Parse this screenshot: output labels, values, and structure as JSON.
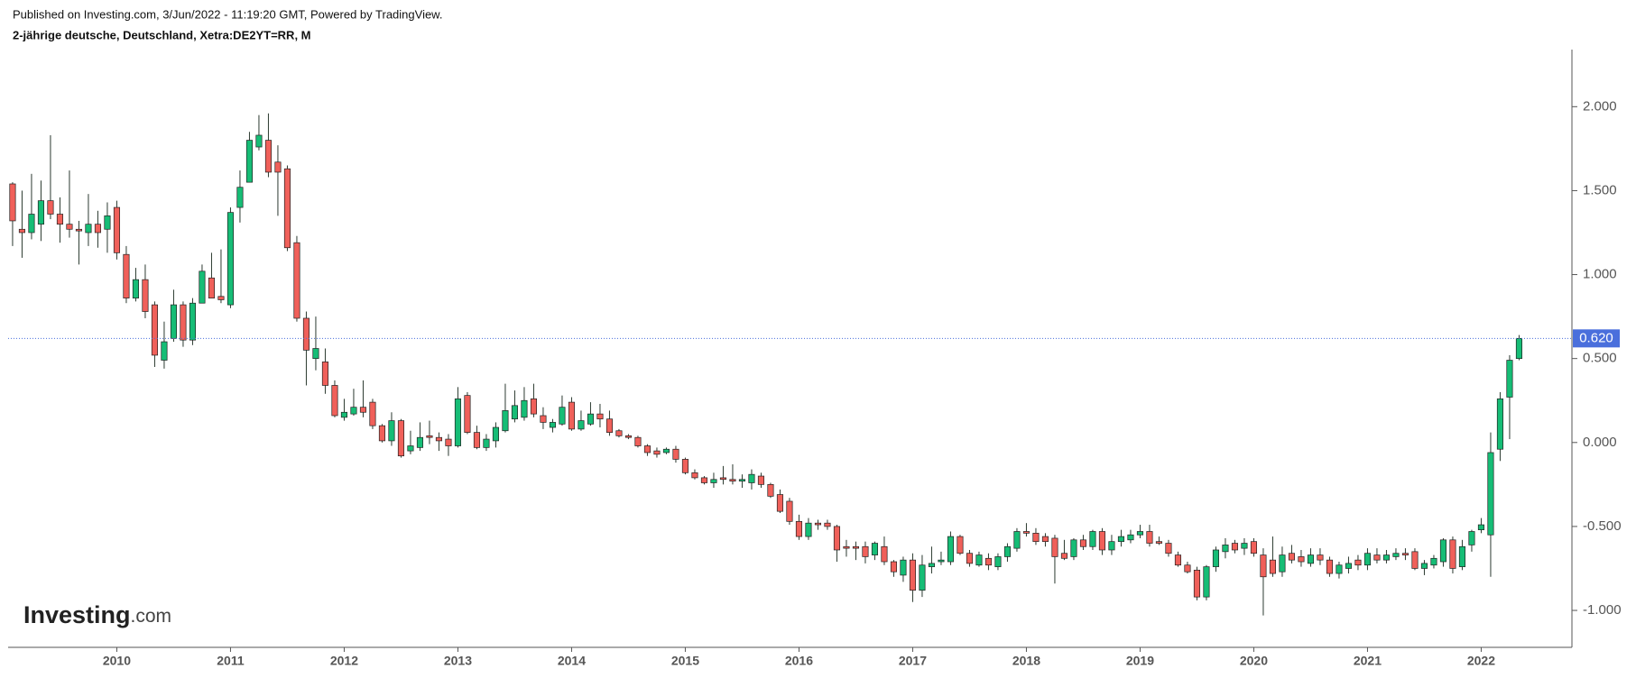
{
  "header": {
    "published": "Published on Investing.com, 3/Jun/2022 - 11:19:20 GMT, Powered by TradingView.",
    "instrument": "2-jährige deutsche, Deutschland, Xetra:DE2YT=RR, M"
  },
  "logo": {
    "name": "Investing",
    "suffix": ".com"
  },
  "chart_data": {
    "type": "candlestick",
    "up_color": "#16bd76",
    "down_color": "#f0605a",
    "wick_color": "#2b3a30",
    "price_line_color": "#4a6fdc",
    "ylim": [
      -1.22,
      2.34
    ],
    "yticks": [
      {
        "value": -1,
        "label": "-1.000"
      },
      {
        "value": -0.5,
        "label": "-0.500"
      },
      {
        "value": 0,
        "label": "0.000"
      },
      {
        "value": 0.5,
        "label": "0.500"
      },
      {
        "value": 1,
        "label": "1.000"
      },
      {
        "value": 1.5,
        "label": "1.500"
      },
      {
        "value": 2,
        "label": "2.000"
      }
    ],
    "last_price": {
      "value": 0.62,
      "label": "0.620"
    },
    "categories": [
      null,
      null,
      null,
      null,
      null,
      null,
      null,
      null,
      null,
      null,
      null,
      "2010",
      null,
      null,
      null,
      null,
      null,
      null,
      null,
      null,
      null,
      null,
      null,
      "2011",
      null,
      null,
      null,
      null,
      null,
      null,
      null,
      null,
      null,
      null,
      null,
      "2012",
      null,
      null,
      null,
      null,
      null,
      null,
      null,
      null,
      null,
      null,
      null,
      "2013",
      null,
      null,
      null,
      null,
      null,
      null,
      null,
      null,
      null,
      null,
      null,
      "2014",
      null,
      null,
      null,
      null,
      null,
      null,
      null,
      null,
      null,
      null,
      null,
      "2015",
      null,
      null,
      null,
      null,
      null,
      null,
      null,
      null,
      null,
      null,
      null,
      "2016",
      null,
      null,
      null,
      null,
      null,
      null,
      null,
      null,
      null,
      null,
      null,
      "2017",
      null,
      null,
      null,
      null,
      null,
      null,
      null,
      null,
      null,
      null,
      null,
      "2018",
      null,
      null,
      null,
      null,
      null,
      null,
      null,
      null,
      null,
      null,
      null,
      "2019",
      null,
      null,
      null,
      null,
      null,
      null,
      null,
      null,
      null,
      null,
      null,
      "2020",
      null,
      null,
      null,
      null,
      null,
      null,
      null,
      null,
      null,
      null,
      null,
      "2021",
      null,
      null,
      null,
      null,
      null,
      null,
      null,
      null,
      null,
      null,
      null,
      "2022",
      null,
      null,
      null,
      null
    ],
    "candles": [
      {
        "open": 1.54,
        "high": 1.55,
        "low": 1.17,
        "close": 1.32
      },
      {
        "open": 1.27,
        "high": 1.5,
        "low": 1.1,
        "close": 1.25
      },
      {
        "open": 1.25,
        "high": 1.6,
        "low": 1.21,
        "close": 1.36
      },
      {
        "open": 1.3,
        "high": 1.56,
        "low": 1.2,
        "close": 1.44
      },
      {
        "open": 1.44,
        "high": 1.83,
        "low": 1.33,
        "close": 1.36
      },
      {
        "open": 1.36,
        "high": 1.46,
        "low": 1.19,
        "close": 1.3
      },
      {
        "open": 1.3,
        "high": 1.62,
        "low": 1.22,
        "close": 1.27
      },
      {
        "open": 1.27,
        "high": 1.32,
        "low": 1.06,
        "close": 1.26
      },
      {
        "open": 1.25,
        "high": 1.48,
        "low": 1.17,
        "close": 1.3
      },
      {
        "open": 1.3,
        "high": 1.38,
        "low": 1.16,
        "close": 1.25
      },
      {
        "open": 1.27,
        "high": 1.43,
        "low": 1.13,
        "close": 1.35
      },
      {
        "open": 1.4,
        "high": 1.44,
        "low": 1.09,
        "close": 1.13
      },
      {
        "open": 1.12,
        "high": 1.17,
        "low": 0.83,
        "close": 0.86
      },
      {
        "open": 0.86,
        "high": 1.04,
        "low": 0.84,
        "close": 0.97
      },
      {
        "open": 0.97,
        "high": 1.06,
        "low": 0.74,
        "close": 0.78
      },
      {
        "open": 0.82,
        "high": 0.84,
        "low": 0.45,
        "close": 0.52
      },
      {
        "open": 0.49,
        "high": 0.72,
        "low": 0.44,
        "close": 0.6
      },
      {
        "open": 0.62,
        "high": 0.91,
        "low": 0.6,
        "close": 0.82
      },
      {
        "open": 0.82,
        "high": 0.84,
        "low": 0.57,
        "close": 0.61
      },
      {
        "open": 0.61,
        "high": 0.86,
        "low": 0.58,
        "close": 0.83
      },
      {
        "open": 0.83,
        "high": 1.06,
        "low": 0.83,
        "close": 1.02
      },
      {
        "open": 0.98,
        "high": 1.13,
        "low": 0.86,
        "close": 0.86
      },
      {
        "open": 0.87,
        "high": 1.15,
        "low": 0.83,
        "close": 0.85
      },
      {
        "open": 0.82,
        "high": 1.4,
        "low": 0.8,
        "close": 1.37
      },
      {
        "open": 1.4,
        "high": 1.62,
        "low": 1.31,
        "close": 1.52
      },
      {
        "open": 1.55,
        "high": 1.85,
        "low": 1.55,
        "close": 1.8
      },
      {
        "open": 1.76,
        "high": 1.95,
        "low": 1.74,
        "close": 1.83
      },
      {
        "open": 1.8,
        "high": 1.96,
        "low": 1.58,
        "close": 1.61
      },
      {
        "open": 1.67,
        "high": 1.77,
        "low": 1.35,
        "close": 1.61
      },
      {
        "open": 1.63,
        "high": 1.65,
        "low": 1.14,
        "close": 1.16
      },
      {
        "open": 1.19,
        "high": 1.23,
        "low": 0.72,
        "close": 0.74
      },
      {
        "open": 0.74,
        "high": 0.78,
        "low": 0.34,
        "close": 0.55
      },
      {
        "open": 0.5,
        "high": 0.75,
        "low": 0.43,
        "close": 0.56
      },
      {
        "open": 0.48,
        "high": 0.56,
        "low": 0.29,
        "close": 0.34
      },
      {
        "open": 0.34,
        "high": 0.37,
        "low": 0.15,
        "close": 0.16
      },
      {
        "open": 0.15,
        "high": 0.26,
        "low": 0.13,
        "close": 0.18
      },
      {
        "open": 0.17,
        "high": 0.32,
        "low": 0.16,
        "close": 0.21
      },
      {
        "open": 0.21,
        "high": 0.37,
        "low": 0.15,
        "close": 0.18
      },
      {
        "open": 0.24,
        "high": 0.26,
        "low": 0.08,
        "close": 0.1
      },
      {
        "open": 0.1,
        "high": 0.11,
        "low": 0,
        "close": 0.01
      },
      {
        "open": 0.01,
        "high": 0.18,
        "low": -0.02,
        "close": 0.13
      },
      {
        "open": 0.13,
        "high": 0.14,
        "low": -0.09,
        "close": -0.08
      },
      {
        "open": -0.05,
        "high": 0.07,
        "low": -0.07,
        "close": -0.02
      },
      {
        "open": -0.03,
        "high": 0.12,
        "low": -0.05,
        "close": 0.03
      },
      {
        "open": 0.04,
        "high": 0.13,
        "low": -0.01,
        "close": 0.03
      },
      {
        "open": 0.03,
        "high": 0.06,
        "low": -0.05,
        "close": 0.01
      },
      {
        "open": 0.02,
        "high": 0.05,
        "low": -0.08,
        "close": -0.02
      },
      {
        "open": -0.02,
        "high": 0.33,
        "low": -0.03,
        "close": 0.26
      },
      {
        "open": 0.28,
        "high": 0.3,
        "low": 0.05,
        "close": 0.06
      },
      {
        "open": 0.06,
        "high": 0.1,
        "low": -0.04,
        "close": -0.03
      },
      {
        "open": -0.03,
        "high": 0.05,
        "low": -0.05,
        "close": 0.02
      },
      {
        "open": 0.01,
        "high": 0.12,
        "low": -0.03,
        "close": 0.09
      },
      {
        "open": 0.07,
        "high": 0.35,
        "low": 0.06,
        "close": 0.19
      },
      {
        "open": 0.14,
        "high": 0.31,
        "low": 0.12,
        "close": 0.22
      },
      {
        "open": 0.15,
        "high": 0.33,
        "low": 0.13,
        "close": 0.25
      },
      {
        "open": 0.26,
        "high": 0.35,
        "low": 0.15,
        "close": 0.17
      },
      {
        "open": 0.16,
        "high": 0.21,
        "low": 0.08,
        "close": 0.12
      },
      {
        "open": 0.09,
        "high": 0.14,
        "low": 0.06,
        "close": 0.12
      },
      {
        "open": 0.11,
        "high": 0.28,
        "low": 0.1,
        "close": 0.21
      },
      {
        "open": 0.24,
        "high": 0.27,
        "low": 0.07,
        "close": 0.08
      },
      {
        "open": 0.08,
        "high": 0.19,
        "low": 0.07,
        "close": 0.13
      },
      {
        "open": 0.11,
        "high": 0.24,
        "low": 0.1,
        "close": 0.17
      },
      {
        "open": 0.17,
        "high": 0.23,
        "low": 0.09,
        "close": 0.14
      },
      {
        "open": 0.14,
        "high": 0.19,
        "low": 0.04,
        "close": 0.06
      },
      {
        "open": 0.07,
        "high": 0.08,
        "low": 0.03,
        "close": 0.04
      },
      {
        "open": 0.04,
        "high": 0.05,
        "low": 0.02,
        "close": 0.03
      },
      {
        "open": 0.03,
        "high": 0.04,
        "low": -0.03,
        "close": -0.02
      },
      {
        "open": -0.02,
        "high": -0.01,
        "low": -0.08,
        "close": -0.06
      },
      {
        "open": -0.05,
        "high": -0.03,
        "low": -0.09,
        "close": -0.07
      },
      {
        "open": -0.06,
        "high": -0.03,
        "low": -0.07,
        "close": -0.04
      },
      {
        "open": -0.04,
        "high": -0.02,
        "low": -0.12,
        "close": -0.1
      },
      {
        "open": -0.1,
        "high": -0.09,
        "low": -0.19,
        "close": -0.18
      },
      {
        "open": -0.18,
        "high": -0.16,
        "low": -0.22,
        "close": -0.21
      },
      {
        "open": -0.21,
        "high": -0.2,
        "low": -0.25,
        "close": -0.24
      },
      {
        "open": -0.24,
        "high": -0.18,
        "low": -0.27,
        "close": -0.22
      },
      {
        "open": -0.21,
        "high": -0.14,
        "low": -0.25,
        "close": -0.22
      },
      {
        "open": -0.22,
        "high": -0.13,
        "low": -0.25,
        "close": -0.23
      },
      {
        "open": -0.23,
        "high": -0.19,
        "low": -0.27,
        "close": -0.22
      },
      {
        "open": -0.24,
        "high": -0.16,
        "low": -0.28,
        "close": -0.19
      },
      {
        "open": -0.2,
        "high": -0.18,
        "low": -0.27,
        "close": -0.25
      },
      {
        "open": -0.25,
        "high": -0.24,
        "low": -0.33,
        "close": -0.32
      },
      {
        "open": -0.31,
        "high": -0.28,
        "low": -0.42,
        "close": -0.41
      },
      {
        "open": -0.35,
        "high": -0.33,
        "low": -0.49,
        "close": -0.47
      },
      {
        "open": -0.47,
        "high": -0.43,
        "low": -0.58,
        "close": -0.56
      },
      {
        "open": -0.56,
        "high": -0.45,
        "low": -0.58,
        "close": -0.48
      },
      {
        "open": -0.48,
        "high": -0.46,
        "low": -0.52,
        "close": -0.49
      },
      {
        "open": -0.48,
        "high": -0.46,
        "low": -0.52,
        "close": -0.5
      },
      {
        "open": -0.5,
        "high": -0.49,
        "low": -0.71,
        "close": -0.64
      },
      {
        "open": -0.62,
        "high": -0.58,
        "low": -0.68,
        "close": -0.63
      },
      {
        "open": -0.62,
        "high": -0.59,
        "low": -0.7,
        "close": -0.63
      },
      {
        "open": -0.62,
        "high": -0.59,
        "low": -0.72,
        "close": -0.68
      },
      {
        "open": -0.67,
        "high": -0.59,
        "low": -0.7,
        "close": -0.6
      },
      {
        "open": -0.62,
        "high": -0.56,
        "low": -0.73,
        "close": -0.71
      },
      {
        "open": -0.71,
        "high": -0.7,
        "low": -0.8,
        "close": -0.77
      },
      {
        "open": -0.79,
        "high": -0.68,
        "low": -0.83,
        "close": -0.7
      },
      {
        "open": -0.7,
        "high": -0.66,
        "low": -0.95,
        "close": -0.88
      },
      {
        "open": -0.88,
        "high": -0.67,
        "low": -0.92,
        "close": -0.73
      },
      {
        "open": -0.74,
        "high": -0.62,
        "low": -0.78,
        "close": -0.72
      },
      {
        "open": -0.71,
        "high": -0.65,
        "low": -0.73,
        "close": -0.7
      },
      {
        "open": -0.71,
        "high": -0.53,
        "low": -0.73,
        "close": -0.56
      },
      {
        "open": -0.56,
        "high": -0.55,
        "low": -0.67,
        "close": -0.66
      },
      {
        "open": -0.66,
        "high": -0.64,
        "low": -0.74,
        "close": -0.72
      },
      {
        "open": -0.73,
        "high": -0.65,
        "low": -0.74,
        "close": -0.67
      },
      {
        "open": -0.69,
        "high": -0.66,
        "low": -0.76,
        "close": -0.73
      },
      {
        "open": -0.74,
        "high": -0.66,
        "low": -0.76,
        "close": -0.68
      },
      {
        "open": -0.68,
        "high": -0.6,
        "low": -0.71,
        "close": -0.62
      },
      {
        "open": -0.63,
        "high": -0.51,
        "low": -0.65,
        "close": -0.53
      },
      {
        "open": -0.53,
        "high": -0.48,
        "low": -0.56,
        "close": -0.54
      },
      {
        "open": -0.54,
        "high": -0.51,
        "low": -0.61,
        "close": -0.59
      },
      {
        "open": -0.56,
        "high": -0.54,
        "low": -0.62,
        "close": -0.59
      },
      {
        "open": -0.57,
        "high": -0.55,
        "low": -0.84,
        "close": -0.68
      },
      {
        "open": -0.66,
        "high": -0.58,
        "low": -0.7,
        "close": -0.69
      },
      {
        "open": -0.68,
        "high": -0.57,
        "low": -0.7,
        "close": -0.58
      },
      {
        "open": -0.58,
        "high": -0.55,
        "low": -0.64,
        "close": -0.62
      },
      {
        "open": -0.62,
        "high": -0.52,
        "low": -0.64,
        "close": -0.53
      },
      {
        "open": -0.53,
        "high": -0.51,
        "low": -0.67,
        "close": -0.64
      },
      {
        "open": -0.64,
        "high": -0.55,
        "low": -0.67,
        "close": -0.59
      },
      {
        "open": -0.59,
        "high": -0.52,
        "low": -0.62,
        "close": -0.56
      },
      {
        "open": -0.58,
        "high": -0.52,
        "low": -0.6,
        "close": -0.55
      },
      {
        "open": -0.55,
        "high": -0.49,
        "low": -0.57,
        "close": -0.53
      },
      {
        "open": -0.53,
        "high": -0.49,
        "low": -0.62,
        "close": -0.6
      },
      {
        "open": -0.59,
        "high": -0.56,
        "low": -0.61,
        "close": -0.6
      },
      {
        "open": -0.6,
        "high": -0.58,
        "low": -0.68,
        "close": -0.66
      },
      {
        "open": -0.67,
        "high": -0.65,
        "low": -0.74,
        "close": -0.73
      },
      {
        "open": -0.73,
        "high": -0.71,
        "low": -0.78,
        "close": -0.77
      },
      {
        "open": -0.76,
        "high": -0.74,
        "low": -0.94,
        "close": -0.92
      },
      {
        "open": -0.92,
        "high": -0.73,
        "low": -0.94,
        "close": -0.74
      },
      {
        "open": -0.74,
        "high": -0.62,
        "low": -0.77,
        "close": -0.64
      },
      {
        "open": -0.65,
        "high": -0.57,
        "low": -0.69,
        "close": -0.61
      },
      {
        "open": -0.6,
        "high": -0.58,
        "low": -0.66,
        "close": -0.64
      },
      {
        "open": -0.63,
        "high": -0.57,
        "low": -0.67,
        "close": -0.6
      },
      {
        "open": -0.59,
        "high": -0.57,
        "low": -0.68,
        "close": -0.66
      },
      {
        "open": -0.67,
        "high": -0.63,
        "low": -1.03,
        "close": -0.8
      },
      {
        "open": -0.7,
        "high": -0.56,
        "low": -0.8,
        "close": -0.78
      },
      {
        "open": -0.77,
        "high": -0.62,
        "low": -0.8,
        "close": -0.67
      },
      {
        "open": -0.66,
        "high": -0.61,
        "low": -0.72,
        "close": -0.7
      },
      {
        "open": -0.68,
        "high": -0.64,
        "low": -0.74,
        "close": -0.71
      },
      {
        "open": -0.72,
        "high": -0.63,
        "low": -0.74,
        "close": -0.67
      },
      {
        "open": -0.67,
        "high": -0.63,
        "low": -0.73,
        "close": -0.7
      },
      {
        "open": -0.7,
        "high": -0.68,
        "low": -0.8,
        "close": -0.78
      },
      {
        "open": -0.78,
        "high": -0.71,
        "low": -0.81,
        "close": -0.73
      },
      {
        "open": -0.75,
        "high": -0.68,
        "low": -0.78,
        "close": -0.72
      },
      {
        "open": -0.7,
        "high": -0.67,
        "low": -0.76,
        "close": -0.73
      },
      {
        "open": -0.73,
        "high": -0.63,
        "low": -0.76,
        "close": -0.66
      },
      {
        "open": -0.67,
        "high": -0.63,
        "low": -0.72,
        "close": -0.7
      },
      {
        "open": -0.7,
        "high": -0.64,
        "low": -0.72,
        "close": -0.67
      },
      {
        "open": -0.68,
        "high": -0.63,
        "low": -0.7,
        "close": -0.66
      },
      {
        "open": -0.66,
        "high": -0.63,
        "low": -0.7,
        "close": -0.67
      },
      {
        "open": -0.65,
        "high": -0.63,
        "low": -0.76,
        "close": -0.75
      },
      {
        "open": -0.75,
        "high": -0.7,
        "low": -0.79,
        "close": -0.72
      },
      {
        "open": -0.73,
        "high": -0.67,
        "low": -0.75,
        "close": -0.69
      },
      {
        "open": -0.71,
        "high": -0.57,
        "low": -0.74,
        "close": -0.58
      },
      {
        "open": -0.58,
        "high": -0.56,
        "low": -0.78,
        "close": -0.75
      },
      {
        "open": -0.74,
        "high": -0.58,
        "low": -0.76,
        "close": -0.62
      },
      {
        "open": -0.61,
        "high": -0.52,
        "low": -0.65,
        "close": -0.53
      },
      {
        "open": -0.52,
        "high": -0.45,
        "low": -0.54,
        "close": -0.49
      },
      {
        "open": -0.55,
        "high": 0.06,
        "low": -0.8,
        "close": -0.06
      },
      {
        "open": -0.04,
        "high": 0.3,
        "low": -0.11,
        "close": 0.26
      },
      {
        "open": 0.27,
        "high": 0.52,
        "low": 0.02,
        "close": 0.49
      },
      {
        "open": 0.5,
        "high": 0.64,
        "low": 0.49,
        "close": 0.62
      }
    ]
  }
}
